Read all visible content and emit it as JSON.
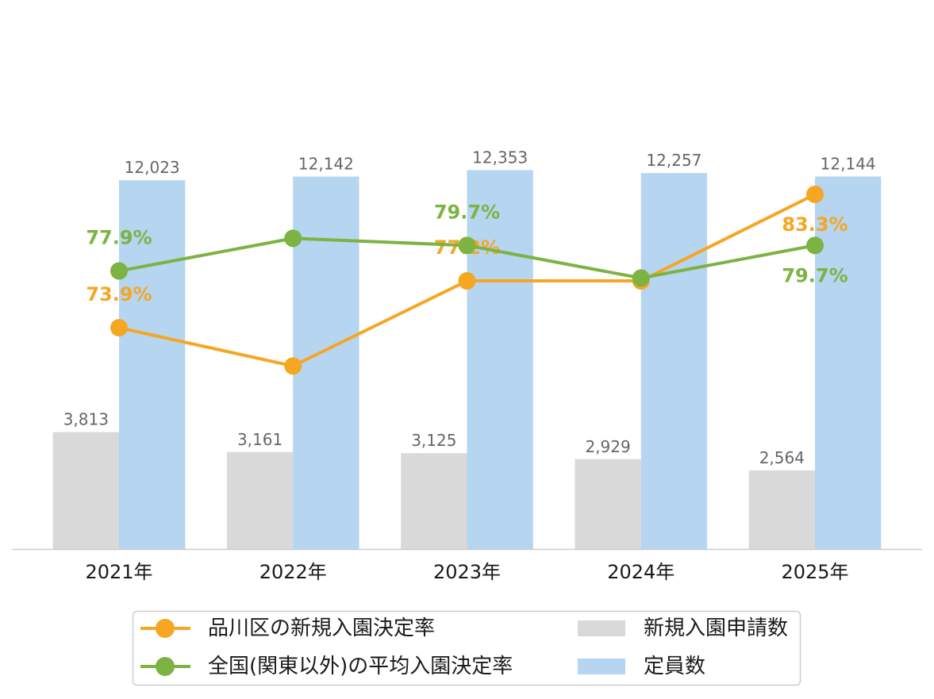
{
  "chart_data": {
    "type": "bar",
    "categories": [
      "2021年",
      "2022年",
      "2023年",
      "2024年",
      "2025年"
    ],
    "series": [
      {
        "name": "新規入園申請数",
        "type": "bar",
        "y_axis": "primary",
        "color": "#d9d9d9",
        "values": [
          3813,
          3161,
          3125,
          2929,
          2564
        ],
        "labels": [
          "3,813",
          "3,161",
          "3,125",
          "2,929",
          "2,564"
        ]
      },
      {
        "name": "定員数",
        "type": "bar",
        "y_axis": "primary",
        "color": "#b5d5f0",
        "values": [
          12023,
          12142,
          12353,
          12257,
          12144
        ],
        "labels": [
          "12,023",
          "12,142",
          "12,353",
          "12,257",
          "12,144"
        ]
      },
      {
        "name": "品川区の新規入園決定率",
        "type": "line",
        "y_axis": "secondary",
        "color": "#f5a623",
        "values": [
          73.9,
          71.2,
          77.2,
          77.2,
          83.3
        ],
        "labels": [
          "73.9%",
          null,
          "77.2%",
          null,
          "83.3%"
        ],
        "label_placement": [
          "above",
          null,
          "above",
          null,
          "below"
        ]
      },
      {
        "name": "全国(関東以外)の平均入園決定率",
        "type": "line",
        "y_axis": "secondary",
        "color": "#7cb342",
        "values": [
          77.9,
          80.2,
          79.7,
          77.4,
          79.7
        ],
        "labels": [
          "77.9%",
          null,
          "79.7%",
          null,
          "79.7%"
        ],
        "label_placement": [
          "above",
          null,
          "above",
          null,
          "below"
        ]
      }
    ],
    "ylim": [
      0,
      17900
    ],
    "y2lim": [
      58.3,
      97.0
    ],
    "grid": false,
    "legend": "bottom"
  }
}
